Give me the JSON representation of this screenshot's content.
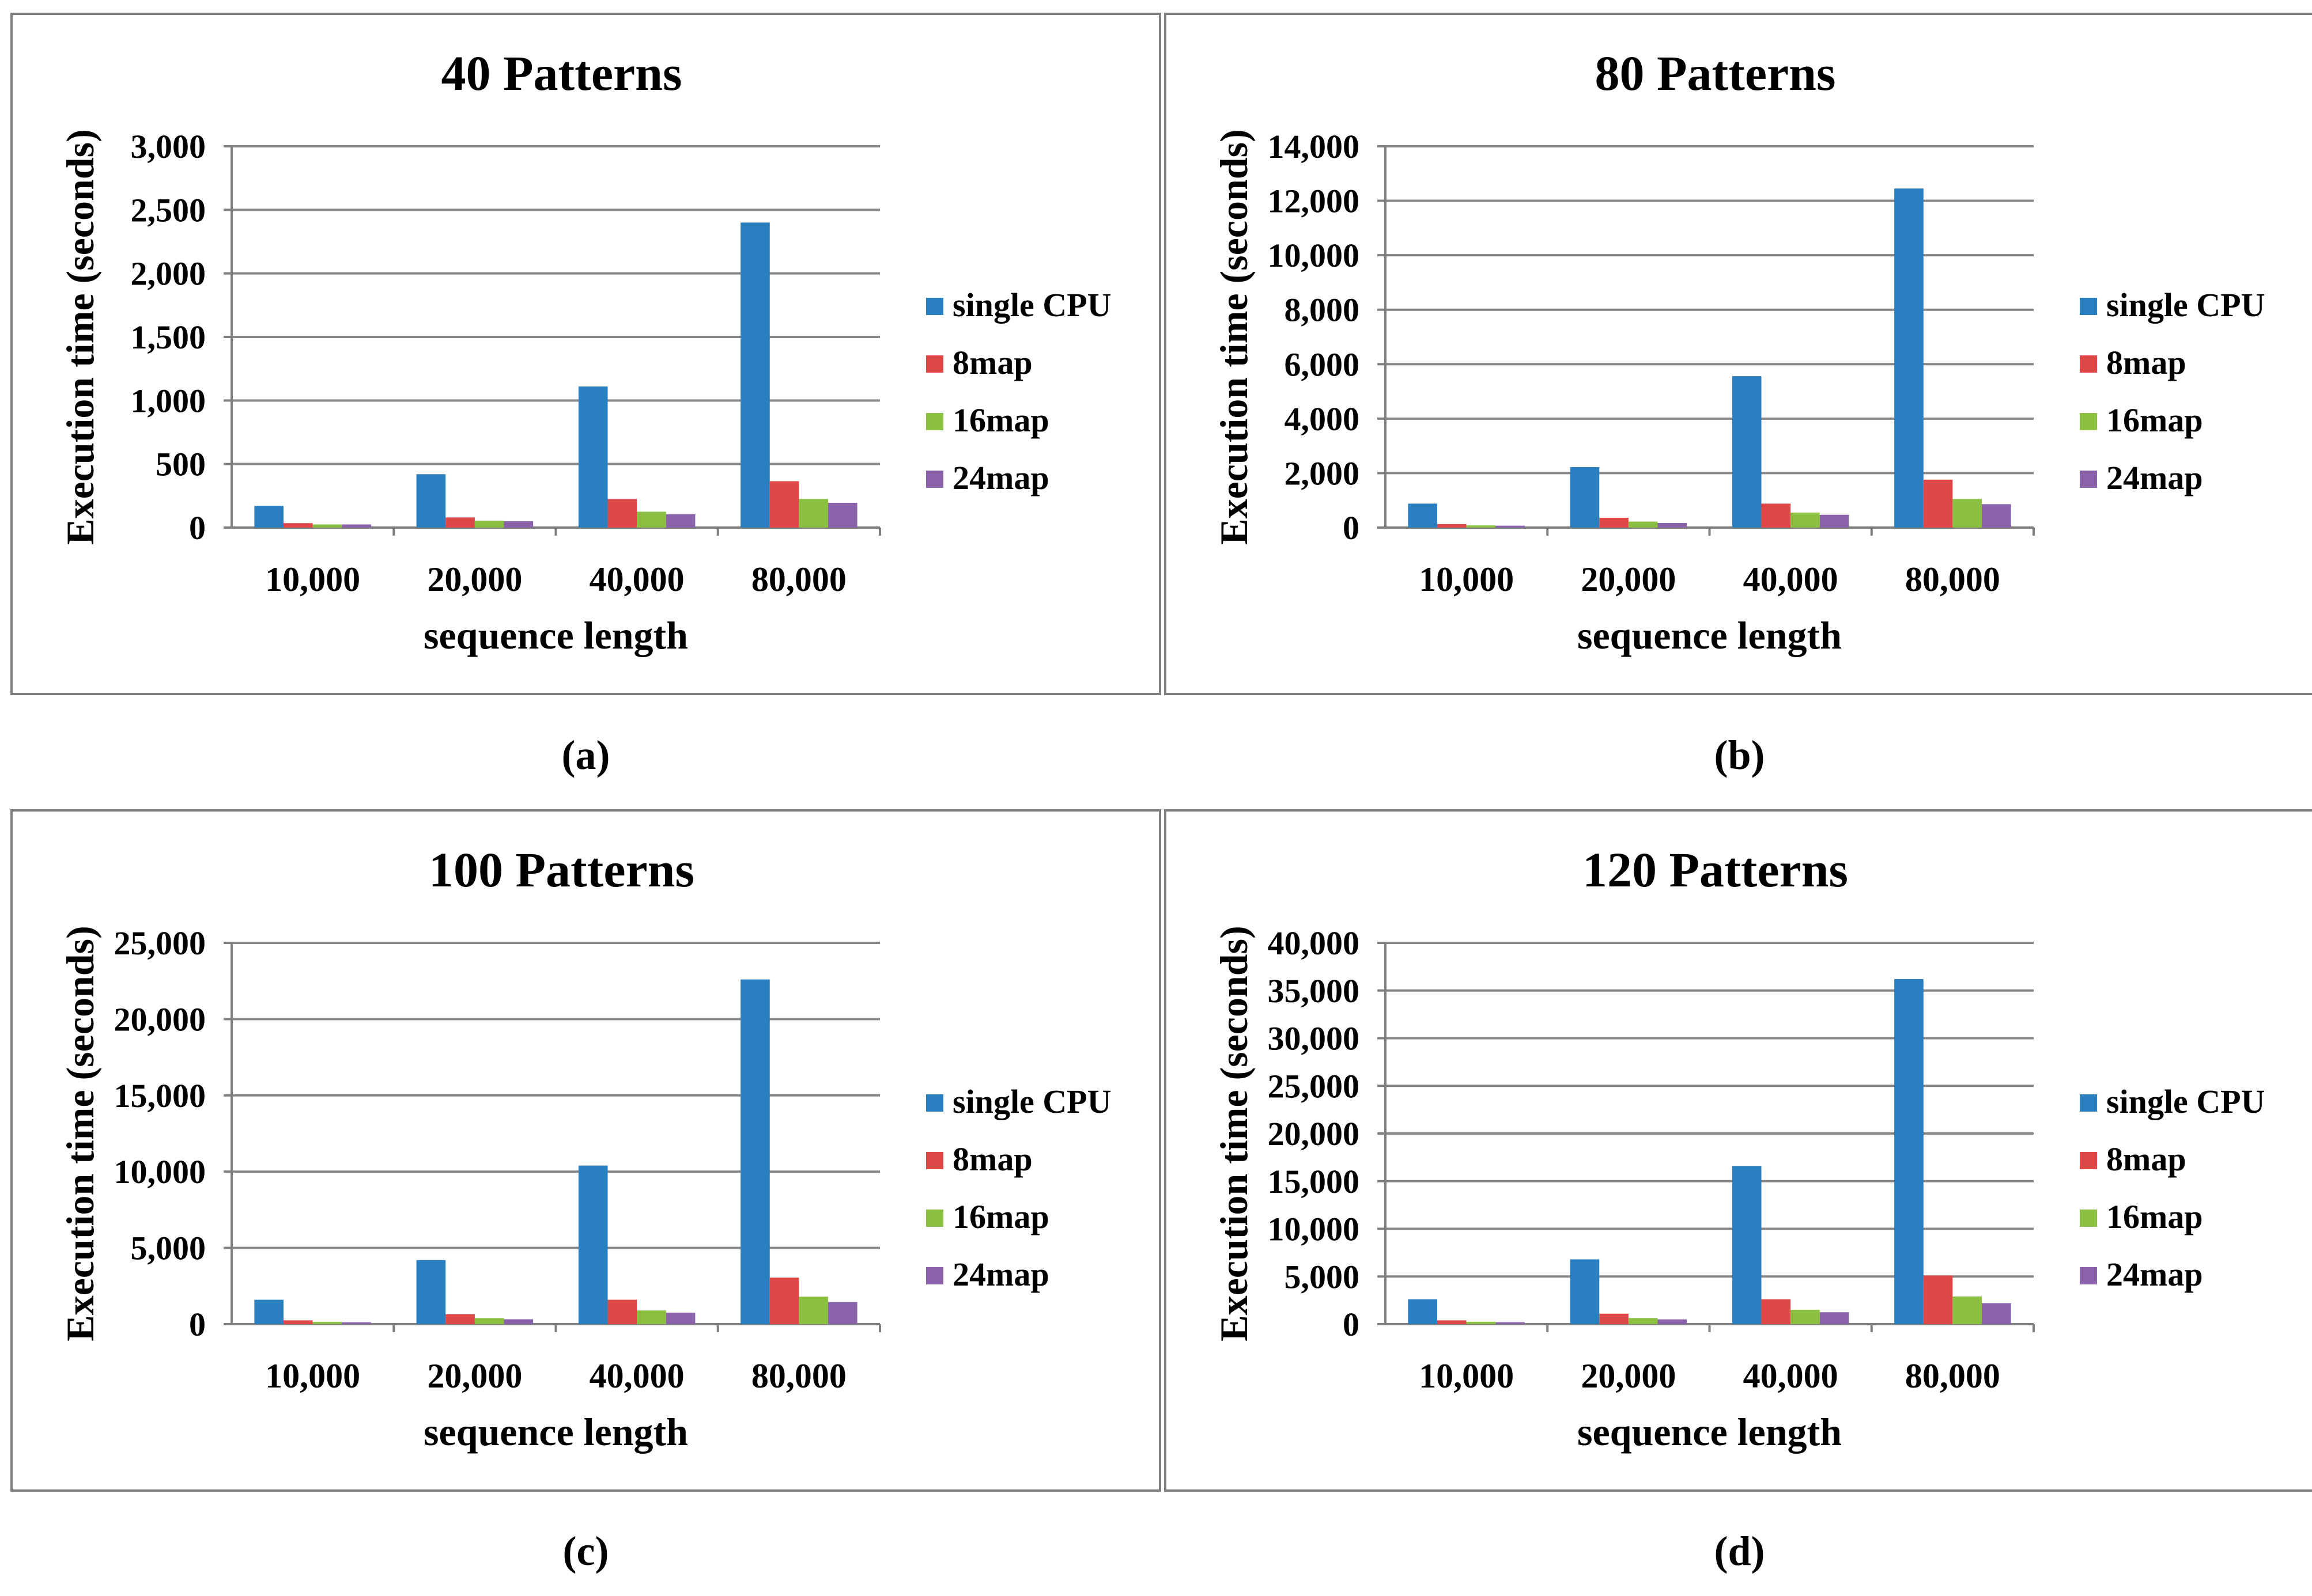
{
  "colors": {
    "single_cpu": "#2a7fc1",
    "map8": "#e04848",
    "map16": "#8cc043",
    "map24": "#8a62aa",
    "grid": "#868686",
    "axis": "#7f7f7f"
  },
  "chart_data": [
    {
      "type": "bar",
      "title": "40 Patterns",
      "xlabel": "sequence length",
      "ylabel": "Execution time (seconds)",
      "categories": [
        "10,000",
        "20,000",
        "40,000",
        "80,000"
      ],
      "ylim": [
        0,
        3000
      ],
      "yticks": [
        0,
        500,
        1000,
        1500,
        2000,
        2500,
        3000
      ],
      "ytick_labels": [
        "0",
        "500",
        "1,000",
        "1,500",
        "2,000",
        "2,500",
        "3,000"
      ],
      "grid": true,
      "legend_position": "right",
      "caption": "(a)",
      "series": [
        {
          "name": "single CPU",
          "values": [
            170,
            420,
            1110,
            2400
          ]
        },
        {
          "name": "8map",
          "values": [
            35,
            80,
            225,
            365
          ]
        },
        {
          "name": "16map",
          "values": [
            25,
            55,
            125,
            225
          ]
        },
        {
          "name": "24map",
          "values": [
            25,
            50,
            105,
            195
          ]
        }
      ]
    },
    {
      "type": "bar",
      "title": "80 Patterns",
      "xlabel": "sequence length",
      "ylabel": "Execution time (seconds)",
      "categories": [
        "10,000",
        "20,000",
        "40,000",
        "80,000"
      ],
      "ylim": [
        0,
        14000
      ],
      "yticks": [
        0,
        2000,
        4000,
        6000,
        8000,
        10000,
        12000,
        14000
      ],
      "ytick_labels": [
        "0",
        "2,000",
        "4,000",
        "6,000",
        "8,000",
        "10,000",
        "12,000",
        "14,000"
      ],
      "grid": true,
      "legend_position": "right",
      "caption": "(b)",
      "series": [
        {
          "name": "single CPU",
          "values": [
            880,
            2220,
            5560,
            12450
          ]
        },
        {
          "name": "8map",
          "values": [
            130,
            360,
            880,
            1760
          ]
        },
        {
          "name": "16map",
          "values": [
            80,
            220,
            550,
            1050
          ]
        },
        {
          "name": "24map",
          "values": [
            70,
            170,
            470,
            860
          ]
        }
      ]
    },
    {
      "type": "bar",
      "title": "100 Patterns",
      "xlabel": "sequence length",
      "ylabel": "Execution time (seconds)",
      "categories": [
        "10,000",
        "20,000",
        "40,000",
        "80,000"
      ],
      "ylim": [
        0,
        25000
      ],
      "yticks": [
        0,
        5000,
        10000,
        15000,
        20000,
        25000
      ],
      "ytick_labels": [
        "0",
        "5,000",
        "10,000",
        "15,000",
        "20,000",
        "25,000"
      ],
      "grid": true,
      "legend_position": "right",
      "caption": "(c)",
      "series": [
        {
          "name": "single CPU",
          "values": [
            1600,
            4200,
            10400,
            22600
          ]
        },
        {
          "name": "8map",
          "values": [
            250,
            650,
            1600,
            3050
          ]
        },
        {
          "name": "16map",
          "values": [
            150,
            400,
            900,
            1800
          ]
        },
        {
          "name": "24map",
          "values": [
            120,
            320,
            750,
            1450
          ]
        }
      ]
    },
    {
      "type": "bar",
      "title": "120 Patterns",
      "xlabel": "sequence length",
      "ylabel": "Execution time (seconds)",
      "categories": [
        "10,000",
        "20,000",
        "40,000",
        "80,000"
      ],
      "ylim": [
        0,
        40000
      ],
      "yticks": [
        0,
        5000,
        10000,
        15000,
        20000,
        25000,
        30000,
        35000,
        40000
      ],
      "ytick_labels": [
        "0",
        "5,000",
        "10,000",
        "15,000",
        "20,000",
        "25,000",
        "30,000",
        "35,000",
        "40,000"
      ],
      "grid": true,
      "legend_position": "right",
      "caption": "(d)",
      "series": [
        {
          "name": "single CPU",
          "values": [
            2600,
            6800,
            16600,
            36200
          ]
        },
        {
          "name": "8map",
          "values": [
            400,
            1100,
            2600,
            5100
          ]
        },
        {
          "name": "16map",
          "values": [
            250,
            650,
            1500,
            2900
          ]
        },
        {
          "name": "24map",
          "values": [
            200,
            500,
            1250,
            2200
          ]
        }
      ]
    }
  ]
}
